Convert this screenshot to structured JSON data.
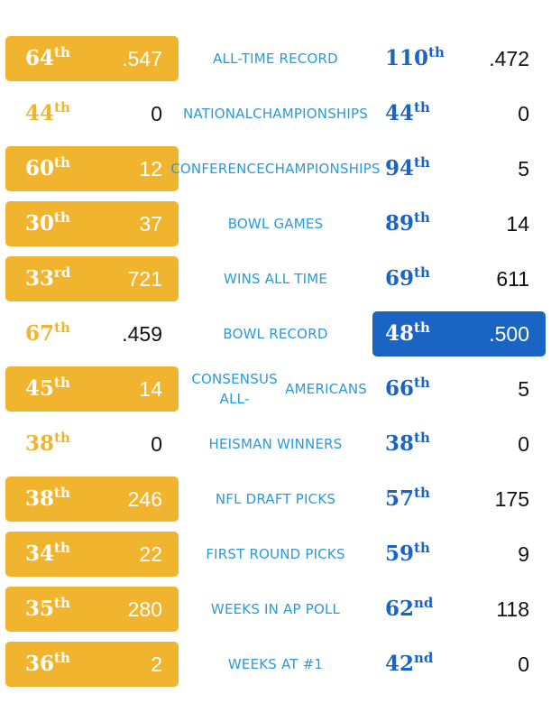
{
  "chart_data": {
    "type": "table",
    "columns": [
      "rank",
      "value",
      "category",
      "rank",
      "value"
    ],
    "rows": [
      {
        "category": "ALL-TIME RECORD",
        "left": {
          "rank": "64",
          "suffix": "th",
          "value": ".547"
        },
        "right": {
          "rank": "110",
          "suffix": "th",
          "value": ".472"
        },
        "highlight": "left"
      },
      {
        "category": "NATIONAL CHAMPIONSHIPS",
        "left": {
          "rank": "44",
          "suffix": "th",
          "value": "0"
        },
        "right": {
          "rank": "44",
          "suffix": "th",
          "value": "0"
        },
        "highlight": "none"
      },
      {
        "category": "CONFERENCE CHAMPIONSHIPS",
        "left": {
          "rank": "60",
          "suffix": "th",
          "value": "12"
        },
        "right": {
          "rank": "94",
          "suffix": "th",
          "value": "5"
        },
        "highlight": "left"
      },
      {
        "category": "BOWL GAMES",
        "left": {
          "rank": "30",
          "suffix": "th",
          "value": "37"
        },
        "right": {
          "rank": "89",
          "suffix": "th",
          "value": "14"
        },
        "highlight": "left"
      },
      {
        "category": "WINS ALL TIME",
        "left": {
          "rank": "33",
          "suffix": "rd",
          "value": "721"
        },
        "right": {
          "rank": "69",
          "suffix": "th",
          "value": "611"
        },
        "highlight": "left"
      },
      {
        "category": "BOWL RECORD",
        "left": {
          "rank": "67",
          "suffix": "th",
          "value": ".459"
        },
        "right": {
          "rank": "48",
          "suffix": "th",
          "value": ".500"
        },
        "highlight": "right"
      },
      {
        "category": "CONSENSUS ALL-AMERICANS",
        "left": {
          "rank": "45",
          "suffix": "th",
          "value": "14"
        },
        "right": {
          "rank": "66",
          "suffix": "th",
          "value": "5"
        },
        "highlight": "left"
      },
      {
        "category": "HEISMAN WINNERS",
        "left": {
          "rank": "38",
          "suffix": "th",
          "value": "0"
        },
        "right": {
          "rank": "38",
          "suffix": "th",
          "value": "0"
        },
        "highlight": "none"
      },
      {
        "category": "NFL DRAFT PICKS",
        "left": {
          "rank": "38",
          "suffix": "th",
          "value": "246"
        },
        "right": {
          "rank": "57",
          "suffix": "th",
          "value": "175"
        },
        "highlight": "left"
      },
      {
        "category": "FIRST ROUND PICKS",
        "left": {
          "rank": "34",
          "suffix": "th",
          "value": "22"
        },
        "right": {
          "rank": "59",
          "suffix": "th",
          "value": "9"
        },
        "highlight": "left"
      },
      {
        "category": "WEEKS IN AP POLL",
        "left": {
          "rank": "35",
          "suffix": "th",
          "value": "280"
        },
        "right": {
          "rank": "62",
          "suffix": "nd",
          "value": "118"
        },
        "highlight": "left"
      },
      {
        "category": "WEEKS AT #1",
        "left": {
          "rank": "36",
          "suffix": "th",
          "value": "2"
        },
        "right": {
          "rank": "42",
          "suffix": "nd",
          "value": "0"
        },
        "highlight": "left"
      }
    ],
    "label_lines": [
      [
        "ALL-TIME RECORD"
      ],
      [
        "NATIONAL",
        "CHAMPIONSHIPS"
      ],
      [
        "CONFERENCE",
        "CHAMPIONSHIPS"
      ],
      [
        "BOWL GAMES"
      ],
      [
        "WINS ALL TIME"
      ],
      [
        "BOWL RECORD"
      ],
      [
        "CONSENSUS ALL-",
        "AMERICANS"
      ],
      [
        "HEISMAN WINNERS"
      ],
      [
        "NFL DRAFT PICKS"
      ],
      [
        "FIRST ROUND PICKS"
      ],
      [
        "WEEKS IN AP POLL"
      ],
      [
        "WEEKS AT #1"
      ]
    ],
    "colors": {
      "left_accent": "#f1b42f",
      "right_accent": "#1a64c4",
      "label": "#2b9ad8",
      "value_text": "#111111"
    }
  }
}
